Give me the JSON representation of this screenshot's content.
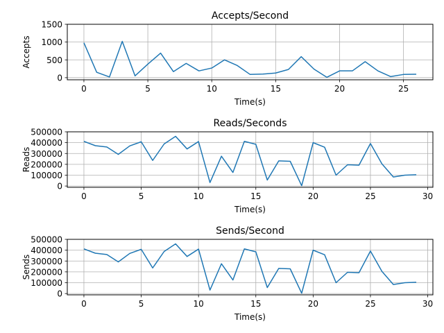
{
  "chart_data": [
    {
      "type": "line",
      "title": "Accepts/Second",
      "xlabel": "Time(s)",
      "ylabel": "Accepts",
      "xlim": [
        -1.3,
        27.3
      ],
      "ylim": [
        -60,
        1500
      ],
      "xticks": [
        0,
        5,
        10,
        15,
        20,
        25
      ],
      "yticks": [
        0,
        500,
        1000,
        1500
      ],
      "grid": true,
      "color": "#1f77b4",
      "x": [
        0,
        1,
        2,
        3,
        4,
        5,
        6,
        7,
        8,
        9,
        10,
        11,
        12,
        13,
        14,
        15,
        16,
        17,
        18,
        19,
        20,
        21,
        22,
        23,
        24,
        25,
        26
      ],
      "y": [
        980,
        150,
        20,
        1020,
        50,
        380,
        690,
        170,
        400,
        190,
        270,
        500,
        340,
        90,
        100,
        130,
        230,
        590,
        240,
        10,
        190,
        190,
        450,
        190,
        30,
        90,
        95
      ]
    },
    {
      "type": "line",
      "title": "Reads/Seconds",
      "xlabel": "Time(s)",
      "ylabel": "Reads",
      "xlim": [
        -1.45,
        30.45
      ],
      "ylim": [
        -12000,
        500000
      ],
      "xticks": [
        0,
        5,
        10,
        15,
        20,
        25,
        30
      ],
      "yticks": [
        0,
        100000,
        200000,
        300000,
        400000,
        500000
      ],
      "grid": true,
      "color": "#1f77b4",
      "x": [
        0,
        1,
        2,
        3,
        4,
        5,
        6,
        7,
        8,
        9,
        10,
        11,
        12,
        13,
        14,
        15,
        16,
        17,
        18,
        19,
        20,
        21,
        22,
        23,
        24,
        25,
        26,
        27,
        28,
        29
      ],
      "y": [
        412000,
        372000,
        360000,
        292000,
        370000,
        408000,
        236000,
        388000,
        458000,
        342000,
        410000,
        32000,
        275000,
        125000,
        412000,
        385000,
        55000,
        232000,
        228000,
        3000,
        400000,
        358000,
        100000,
        196000,
        192000,
        392000,
        205000,
        83000,
        100000,
        104000
      ]
    },
    {
      "type": "line",
      "title": "Sends/Second",
      "xlabel": "Time(s)",
      "ylabel": "Sends",
      "xlim": [
        -1.45,
        30.45
      ],
      "ylim": [
        -12000,
        500000
      ],
      "xticks": [
        0,
        5,
        10,
        15,
        20,
        25,
        30
      ],
      "yticks": [
        0,
        100000,
        200000,
        300000,
        400000,
        500000
      ],
      "grid": true,
      "color": "#1f77b4",
      "x": [
        0,
        1,
        2,
        3,
        4,
        5,
        6,
        7,
        8,
        9,
        10,
        11,
        12,
        13,
        14,
        15,
        16,
        17,
        18,
        19,
        20,
        21,
        22,
        23,
        24,
        25,
        26,
        27,
        28,
        29
      ],
      "y": [
        412000,
        372000,
        360000,
        292000,
        370000,
        408000,
        236000,
        388000,
        458000,
        342000,
        410000,
        32000,
        275000,
        125000,
        412000,
        385000,
        55000,
        232000,
        228000,
        3000,
        400000,
        358000,
        100000,
        196000,
        192000,
        392000,
        205000,
        83000,
        100000,
        104000
      ]
    }
  ]
}
